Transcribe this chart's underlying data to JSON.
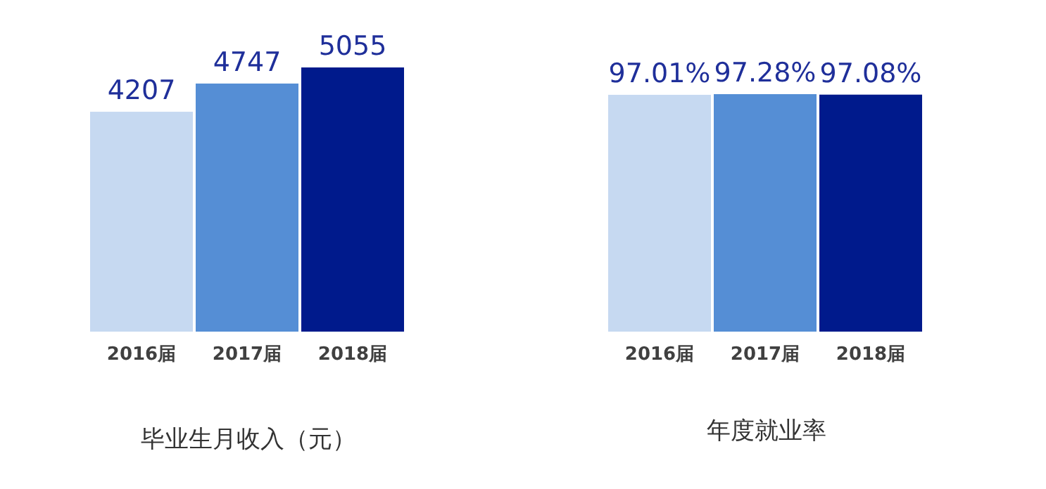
{
  "chart_data": [
    {
      "type": "bar",
      "xlabel": "毕业生月收入（元）",
      "categories": [
        "2016届",
        "2017届",
        "2018届"
      ],
      "values": [
        4207,
        4747,
        5055
      ],
      "colors": [
        "#c6d9f1",
        "#558ed5",
        "#001a8c"
      ],
      "data_labels": true,
      "tick_labels": "x"
    },
    {
      "type": "bar",
      "xlabel": "年度就业率",
      "categories": [
        "2016届",
        "2017届",
        "2018届"
      ],
      "values": [
        97.01,
        97.28,
        97.08
      ],
      "value_labels": [
        "97.01%",
        "97.28%",
        "97.08%"
      ],
      "colors": [
        "#c6d9f1",
        "#558ed5",
        "#001a8c"
      ],
      "tick_labels": "x"
    }
  ]
}
